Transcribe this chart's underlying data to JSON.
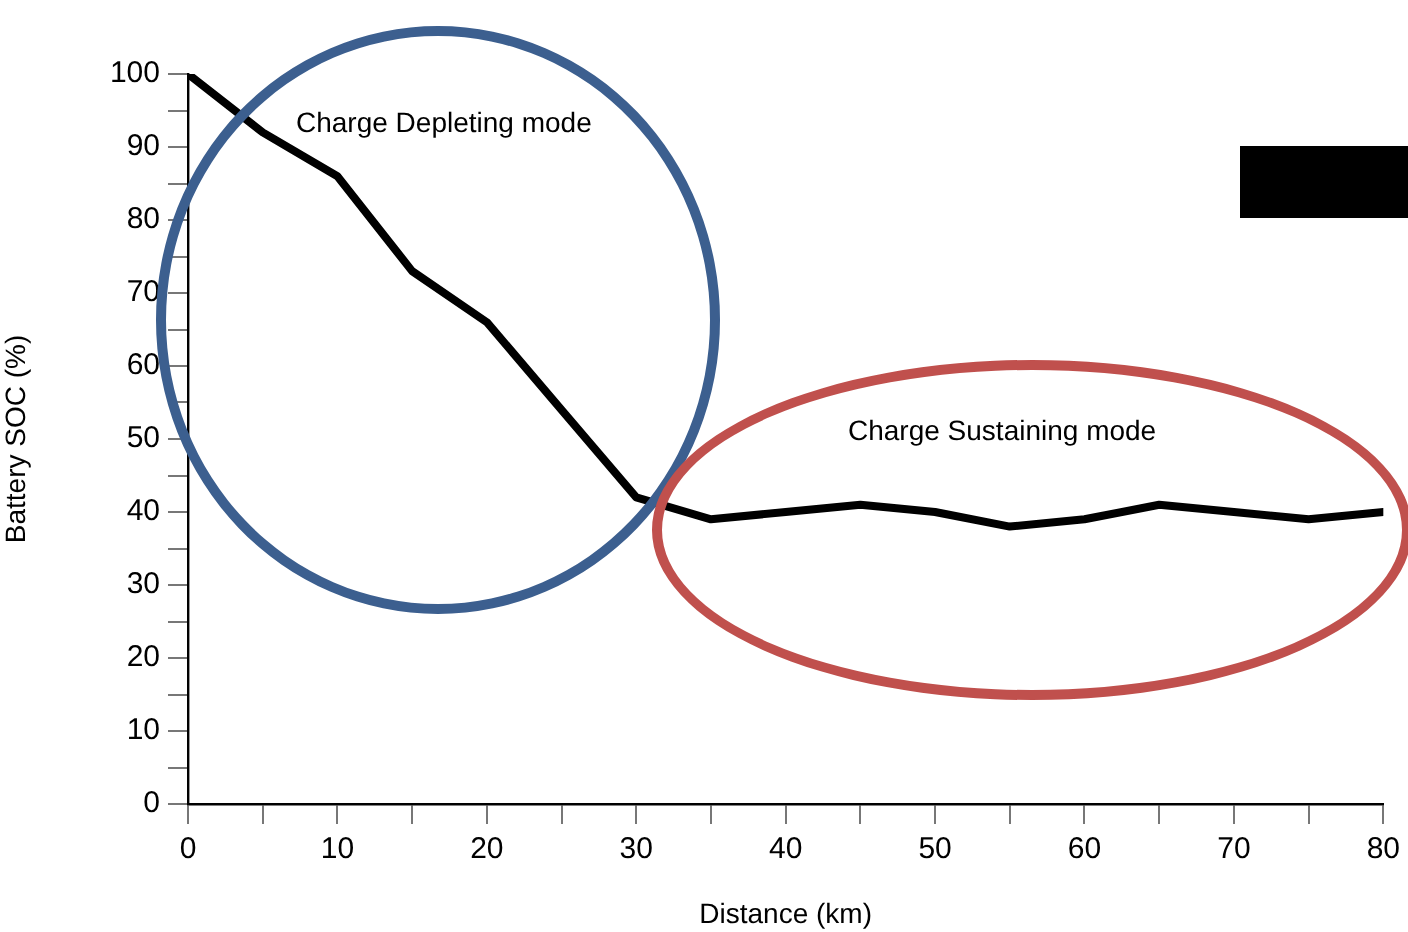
{
  "chart_data": {
    "type": "line",
    "xlabel": "Distance (km)",
    "ylabel": "Battery SOC (%)",
    "x": [
      0,
      5,
      10,
      15,
      20,
      25,
      30,
      35,
      40,
      45,
      50,
      55,
      60,
      65,
      70,
      75,
      80
    ],
    "series": [
      {
        "color": "#000000",
        "values": [
          100,
          92,
          86,
          73,
          66,
          54,
          42,
          39,
          40,
          41,
          40,
          38,
          39,
          41,
          40,
          39,
          40
        ]
      }
    ],
    "xlim": [
      0,
      80
    ],
    "xticks": [
      0,
      {
        "value": 5,
        "label": null
      },
      10,
      {
        "value": 15,
        "label": null
      },
      20,
      {
        "value": 25,
        "label": null
      },
      30,
      {
        "value": 35,
        "label": null
      },
      40,
      {
        "value": 45,
        "label": null
      },
      50,
      {
        "value": 55,
        "label": null
      },
      60,
      {
        "value": 65,
        "label": null
      },
      70,
      {
        "value": 75,
        "label": null
      },
      80
    ],
    "ylim": [
      0,
      100
    ],
    "yticks": [
      0,
      {
        "value": 5,
        "label": null
      },
      10,
      {
        "value": 15,
        "label": null
      },
      20,
      {
        "value": 25,
        "label": null
      },
      30,
      {
        "value": 35,
        "label": null
      },
      40,
      {
        "value": 45,
        "label": null
      },
      50,
      {
        "value": 55,
        "label": null
      },
      60,
      {
        "value": 65,
        "label": null
      },
      70,
      {
        "value": 75,
        "label": null
      },
      80,
      {
        "value": 85,
        "label": null
      },
      90,
      {
        "value": 95,
        "label": null
      },
      100
    ],
    "annotations": [
      "Charge Depleting mode",
      "Charge Sustaining mode"
    ],
    "grid": false,
    "legend": false,
    "marker": "none",
    "line_style": "solid"
  }
}
